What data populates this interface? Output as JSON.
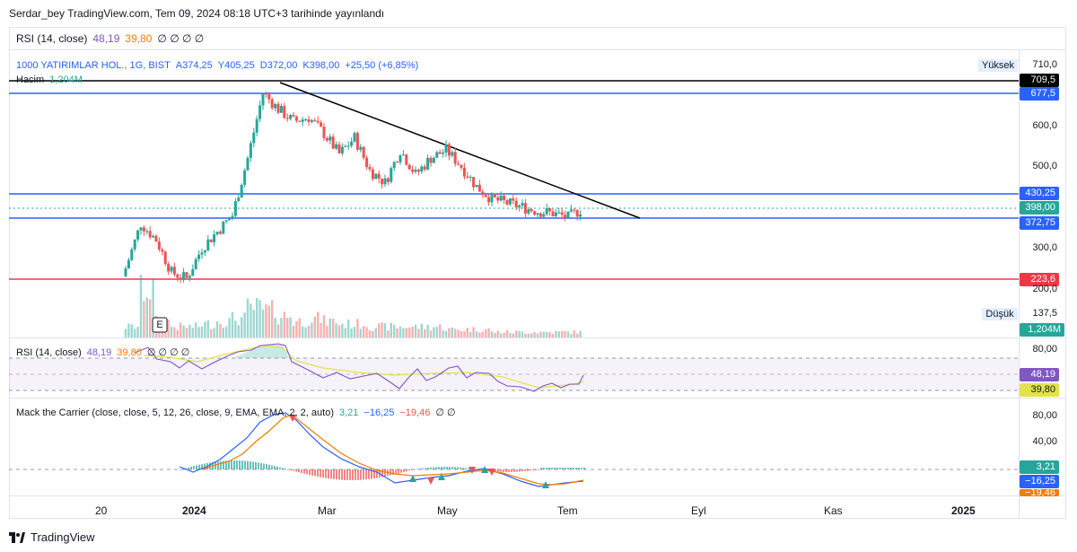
{
  "publish_header": "Serdar_bey TradingView.com, Tem 09, 2024 08:18 UTC+3 tarihinde yayınlandı",
  "top_rsi": {
    "name": "RSI (14, close)",
    "v1": "48,19",
    "v2": "39,80",
    "extra": "∅ ∅ ∅ ∅"
  },
  "main_legend": {
    "symbol": "1000 YATIRIMLAR HOL., 1G, BIST",
    "a": "A374,25",
    "y": "Y405,25",
    "d": "D372,00",
    "k": "K398,00",
    "chg": "+25,50 (+6,85%)"
  },
  "volume_legend": {
    "name": "Hacim",
    "value": "1,204M"
  },
  "rsi_legend": {
    "name": "RSI (14, close)",
    "v1": "48,19",
    "v2": "39,80",
    "extra": "∅ ∅ ∅ ∅"
  },
  "macd_legend": {
    "name": "Mack the Carrier (close, close, 5, 12, 26, close, 9, EMA, EMA, 2, 2, auto)",
    "v1": "3,21",
    "v2": "−16,25",
    "v3": "−19,46",
    "extra": "∅ ∅"
  },
  "price_axis": {
    "labels": [
      "600,0",
      "500,0",
      "300,0",
      "200,0"
    ],
    "high_label": "Yüksek",
    "high_value": "710,0",
    "low_label": "Düşük",
    "low_value": "137,5",
    "tags": {
      "trend_top": "709,5",
      "level_677": "677,5",
      "level_430": "430,25",
      "last_price": "398,00",
      "level_372": "372,75",
      "level_223": "223,6",
      "volume": "1,204M"
    }
  },
  "rsi_axis": {
    "label_80": "80,00",
    "tag_rsi": "48,19",
    "tag_ma": "39,80"
  },
  "macd_axis": {
    "label_80": "80,00",
    "label_40": "40,00",
    "tag1": "3,21",
    "tag2": "−16,25",
    "tag3": "−19,46"
  },
  "time_axis": [
    "20",
    "2024",
    "Mar",
    "May",
    "Tem",
    "Eyl",
    "Kas",
    "2025"
  ],
  "event_marker": "E",
  "footer": "TradingView",
  "colors": {
    "up": "#26a69a",
    "down": "#ef5350",
    "level_line": "#2962ff",
    "support_red": "#f23645",
    "rsi_line": "#7e57c2",
    "rsi_ma": "#e0e34a",
    "macd_fast": "#2962ff",
    "macd_slow": "#f57c00"
  },
  "chart_data": {
    "type": "candlestick",
    "x": [
      "2023-12-12",
      "2023-12-19",
      "2023-12-26",
      "2024-01-02",
      "2024-01-09",
      "2024-01-16",
      "2024-01-23",
      "2024-01-30",
      "2024-02-06",
      "2024-02-13",
      "2024-02-20",
      "2024-02-27",
      "2024-03-05",
      "2024-03-12",
      "2024-03-19",
      "2024-03-26",
      "2024-04-02",
      "2024-04-09",
      "2024-04-16",
      "2024-04-23",
      "2024-04-30",
      "2024-05-07",
      "2024-05-14",
      "2024-05-21",
      "2024-05-28",
      "2024-06-04",
      "2024-06-11",
      "2024-06-18",
      "2024-06-25",
      "2024-07-02",
      "2024-07-08"
    ],
    "close": [
      250,
      360,
      320,
      240,
      225,
      300,
      340,
      380,
      520,
      680,
      640,
      610,
      620,
      580,
      530,
      570,
      490,
      460,
      540,
      480,
      520,
      540,
      500,
      450,
      420,
      410,
      400,
      390,
      385,
      375,
      398
    ],
    "volume_relative": [
      0.2,
      0.9,
      0.3,
      0.2,
      0.2,
      0.25,
      0.3,
      0.35,
      0.55,
      0.5,
      0.4,
      0.3,
      0.35,
      0.3,
      0.25,
      0.25,
      0.2,
      0.2,
      0.2,
      0.2,
      0.2,
      0.15,
      0.15,
      0.15,
      0.1,
      0.1,
      0.1,
      0.1,
      0.1,
      0.1,
      0.15
    ],
    "ylim": [
      137.5,
      710.0
    ],
    "horizontal_levels": [
      709.5,
      677.5,
      430.25,
      372.75,
      223.6
    ],
    "trendline": {
      "from": {
        "x": "2024-02-20",
        "y": 709.5
      },
      "to": {
        "x": "2024-07-30",
        "y": 372.75
      }
    },
    "last_price": 398.0,
    "rsi": {
      "value": 48.19,
      "ma": 39.8
    },
    "macd": {
      "v1": 3.21,
      "v2": -16.25,
      "v3": -19.46
    }
  }
}
